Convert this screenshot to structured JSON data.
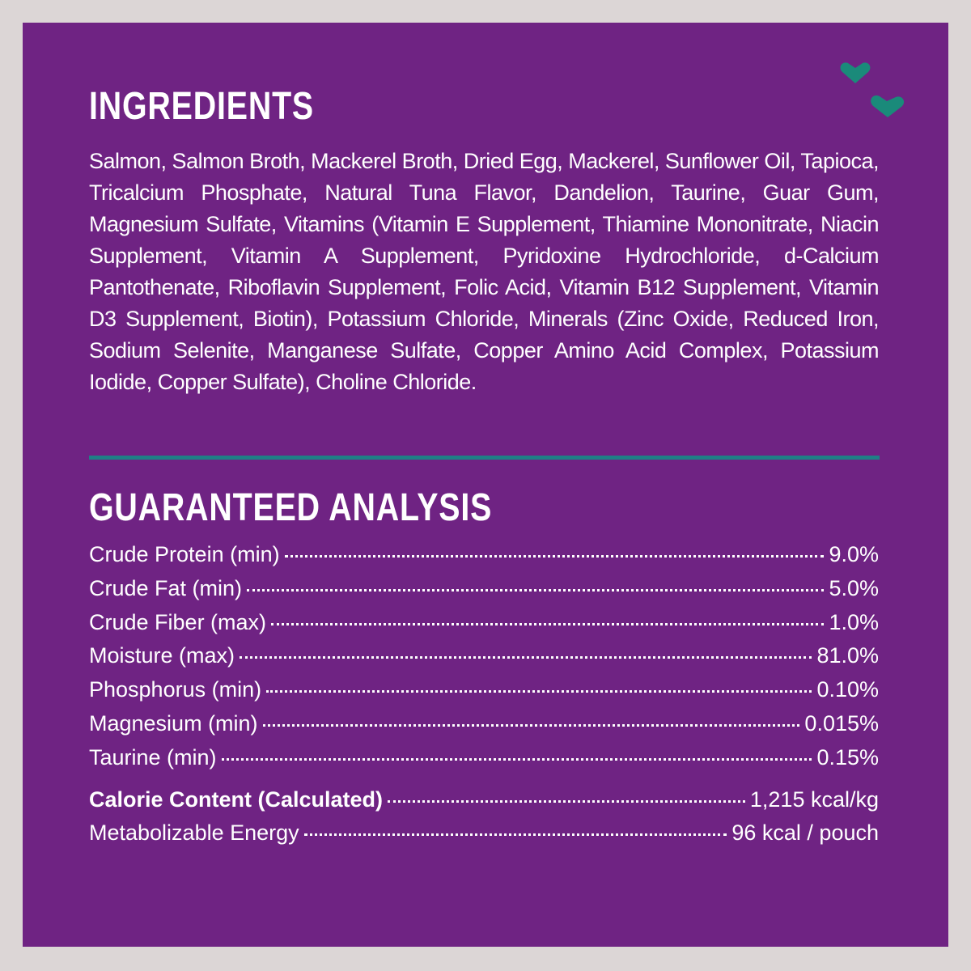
{
  "ingredients": {
    "title": "INGREDIENTS",
    "text": "Salmon, Salmon Broth, Mackerel Broth, Dried Egg, Mackerel, Sunflower Oil, Tapioca, Tricalcium Phosphate, Natural Tuna Flavor, Dandelion, Taurine, Guar Gum, Magnesium Sulfate, Vitamins (Vitamin E Supplement, Thiamine Mononitrate, Niacin Supplement, Vitamin A Supplement, Pyridoxine Hydrochloride, d-Calcium Pantothenate, Riboflavin Supplement, Folic Acid, Vitamin B12 Supplement, Vitamin D3 Supplement, Biotin), Potassium Chloride, Minerals (Zinc Oxide, Reduced Iron, Sodium Selenite, Manganese Sulfate, Copper Amino Acid Complex, Potassium Iodide, Copper Sulfate), Choline Chloride."
  },
  "analysis": {
    "title": "GUARANTEED ANALYSIS",
    "rows": [
      {
        "label": "Crude Protein (min)",
        "value": "9.0%"
      },
      {
        "label": "Crude Fat (min)",
        "value": "5.0%"
      },
      {
        "label": "Crude Fiber (max)",
        "value": "1.0%"
      },
      {
        "label": "Moisture (max)",
        "value": "81.0%"
      },
      {
        "label": "Phosphorus (min)",
        "value": "0.10%"
      },
      {
        "label": "Magnesium (min)",
        "value": "0.015%"
      },
      {
        "label": "Taurine (min)",
        "value": "0.15%"
      }
    ],
    "energy": [
      {
        "label": "Calorie Content (Calculated)",
        "value": "1,215 kcal/kg"
      },
      {
        "label": "Metabolizable Energy",
        "value": "96 kcal / pouch"
      }
    ]
  }
}
